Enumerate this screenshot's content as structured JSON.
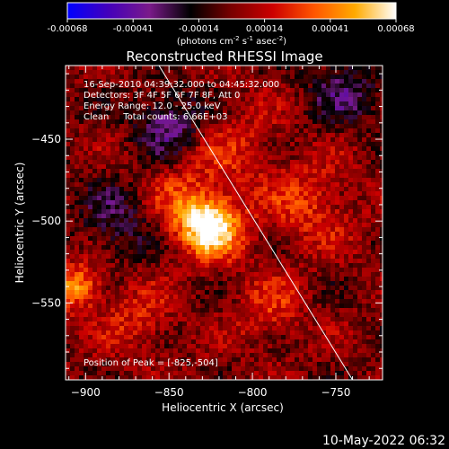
{
  "chart_data": {
    "type": "heatmap",
    "title": "Reconstructed RHESSI Image",
    "xlabel": "Heliocentric X (arcsec)",
    "ylabel": "Heliocentric Y (arcsec)",
    "xlim": [
      -912,
      -722
    ],
    "ylim": [
      -597,
      -405
    ],
    "x_ticks": [
      -900,
      -850,
      -800,
      -750
    ],
    "y_ticks": [
      -450,
      -500,
      -550
    ],
    "colorbar": {
      "min": -0.00068,
      "max": 0.00068,
      "ticks": [
        "-0.00068",
        "-0.00041",
        "-0.00014",
        "0.00014",
        "0.00041",
        "0.00068"
      ],
      "unit_parts": [
        "(photons cm",
        "-2",
        " s",
        "-1",
        " asec",
        "-2",
        ")"
      ],
      "colors": [
        "#0000ff",
        "#4400bb",
        "#7a1a8a",
        "#000000",
        "#7a0000",
        "#cc0000",
        "#ff5500",
        "#ffaa00",
        "#ffffff"
      ]
    },
    "info_lines": [
      "16-Sep-2010 04:39:32.000 to 04:45:32.000",
      "Detectors: 3F 4F 5F 6F 7F 8F, Att 0",
      "Energy Range: 12.0 - 25.0 keV",
      "Clean     Total counts: 6.66E+03"
    ],
    "peak_label": "Position of Peak = [-825,-504]",
    "peak": [
      -825,
      -504
    ],
    "limb_line": [
      [
        -856,
        -405
      ],
      [
        -740,
        -597
      ]
    ],
    "sources": [
      {
        "x": -825,
        "y": -504,
        "sigma": 13,
        "amp": 1.0
      },
      {
        "x": -842,
        "y": -488,
        "sigma": 16,
        "amp": 0.35
      },
      {
        "x": -905,
        "y": -540,
        "sigma": 10,
        "amp": 0.65
      },
      {
        "x": -810,
        "y": -455,
        "sigma": 20,
        "amp": 0.25
      },
      {
        "x": -765,
        "y": -490,
        "sigma": 18,
        "amp": 0.35
      },
      {
        "x": -790,
        "y": -555,
        "sigma": 15,
        "amp": 0.3
      },
      {
        "x": -870,
        "y": -560,
        "sigma": 15,
        "amp": 0.3
      }
    ],
    "sinks": [
      {
        "x": -850,
        "y": -440,
        "sigma": 14,
        "amp": 0.5
      },
      {
        "x": -880,
        "y": -500,
        "sigma": 16,
        "amp": 0.35
      },
      {
        "x": -745,
        "y": -420,
        "sigma": 16,
        "amp": 0.35
      }
    ]
  },
  "timestamp": "10-May-2022 06:32"
}
